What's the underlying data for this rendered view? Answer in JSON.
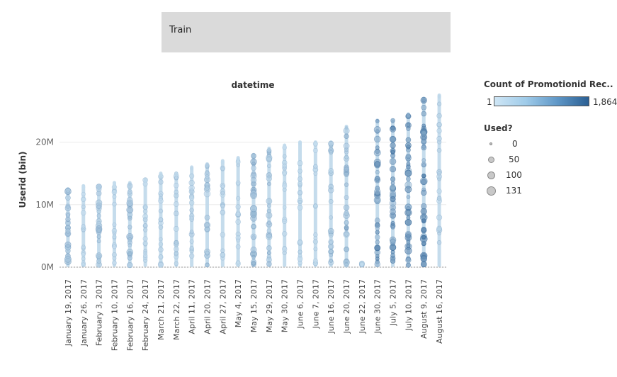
{
  "title_box": {
    "text": "Train"
  },
  "chart_data": {
    "type": "scatter",
    "title": "datetime",
    "ylabel": "Userid (bin)",
    "yticks": [
      {
        "label": "0M",
        "value": 0
      },
      {
        "label": "10M",
        "value": 10
      },
      {
        "label": "20M",
        "value": 20
      }
    ],
    "ylim": [
      0,
      28
    ],
    "y_unit": "M",
    "categories": [
      "January 19, 2017",
      "January 26, 2017",
      "February 3, 2017",
      "February 10, 2017",
      "February 16, 2017",
      "February 24, 2017",
      "March 21, 2017",
      "March 22, 2017",
      "April 11, 2017",
      "April 20, 2017",
      "April 27, 2017",
      "May 4, 2017",
      "May 15, 2017",
      "May 29, 2017",
      "May 30, 2017",
      "June 6, 2017",
      "June 7, 2017",
      "June 16, 2017",
      "June 20, 2017",
      "June 22, 2017",
      "June 30, 2017",
      "July 5, 2017",
      "July 10, 2017",
      "August 9, 2017",
      "August 16, 2017"
    ],
    "columns": [
      {
        "category": "January 19, 2017",
        "min": 0.3,
        "max": 12.5,
        "intensity": 0.38,
        "size": 0.55
      },
      {
        "category": "January 26, 2017",
        "min": 0.3,
        "max": 13.0,
        "intensity": 0.12,
        "size": 0.25
      },
      {
        "category": "February 3, 2017",
        "min": 0.3,
        "max": 13.0,
        "intensity": 0.33,
        "size": 0.5
      },
      {
        "category": "February 10, 2017",
        "min": 0.3,
        "max": 13.5,
        "intensity": 0.12,
        "size": 0.25
      },
      {
        "category": "February 16, 2017",
        "min": 0.3,
        "max": 13.5,
        "intensity": 0.35,
        "size": 0.55
      },
      {
        "category": "February 24, 2017",
        "min": 0.3,
        "max": 14.0,
        "intensity": 0.15,
        "size": 0.3
      },
      {
        "category": "March 21, 2017",
        "min": 0.3,
        "max": 15.0,
        "intensity": 0.18,
        "size": 0.3
      },
      {
        "category": "March 22, 2017",
        "min": 0.3,
        "max": 15.0,
        "intensity": 0.2,
        "size": 0.35
      },
      {
        "category": "April 11, 2017",
        "min": 0.3,
        "max": 16.0,
        "intensity": 0.2,
        "size": 0.35
      },
      {
        "category": "April 20, 2017",
        "min": 0.3,
        "max": 16.5,
        "intensity": 0.3,
        "size": 0.5
      },
      {
        "category": "April 27, 2017",
        "min": 0.3,
        "max": 17.0,
        "intensity": 0.15,
        "size": 0.3
      },
      {
        "category": "May 4, 2017",
        "min": 0.3,
        "max": 17.5,
        "intensity": 0.15,
        "size": 0.3
      },
      {
        "category": "May 15, 2017",
        "min": 0.3,
        "max": 18.0,
        "intensity": 0.45,
        "size": 0.55
      },
      {
        "category": "May 29, 2017",
        "min": 0.3,
        "max": 19.0,
        "intensity": 0.35,
        "size": 0.45
      },
      {
        "category": "May 30, 2017",
        "min": 0.3,
        "max": 19.5,
        "intensity": 0.12,
        "size": 0.25
      },
      {
        "category": "June 6, 2017",
        "min": 0.3,
        "max": 20.0,
        "intensity": 0.15,
        "size": 0.3
      },
      {
        "category": "June 7, 2017",
        "min": 0.3,
        "max": 20.0,
        "intensity": 0.12,
        "size": 0.25
      },
      {
        "category": "June 16, 2017",
        "min": 0.3,
        "max": 20.0,
        "intensity": 0.3,
        "size": 0.4
      },
      {
        "category": "June 20, 2017",
        "min": 0.3,
        "max": 22.5,
        "intensity": 0.45,
        "size": 0.5
      },
      {
        "category": "June 22, 2017",
        "min": 0.3,
        "max": 0.6,
        "intensity": 0.15,
        "size": 0.3
      },
      {
        "category": "June 30, 2017",
        "min": 0.3,
        "max": 23.5,
        "intensity": 0.75,
        "size": 0.55
      },
      {
        "category": "July 5, 2017",
        "min": 0.3,
        "max": 23.5,
        "intensity": 0.78,
        "size": 0.55
      },
      {
        "category": "July 10, 2017",
        "min": 0.3,
        "max": 24.5,
        "intensity": 0.8,
        "size": 0.6
      },
      {
        "category": "August 9, 2017",
        "min": 0.3,
        "max": 27.0,
        "intensity": 0.9,
        "size": 0.65
      },
      {
        "category": "August 16, 2017",
        "min": 0.3,
        "max": 27.5,
        "intensity": 0.2,
        "size": 0.35
      }
    ],
    "legend_color": {
      "title": "Count of Promotionid Rec..",
      "min_label": "1",
      "max_label": "1,864",
      "colors": [
        "#cfe6f5",
        "#2b5f93"
      ]
    },
    "legend_size": {
      "title": "Used?",
      "items": [
        {
          "label": "0",
          "value": 0
        },
        {
          "label": "50",
          "value": 50
        },
        {
          "label": "100",
          "value": 100
        },
        {
          "label": "131",
          "value": 131
        }
      ]
    }
  }
}
